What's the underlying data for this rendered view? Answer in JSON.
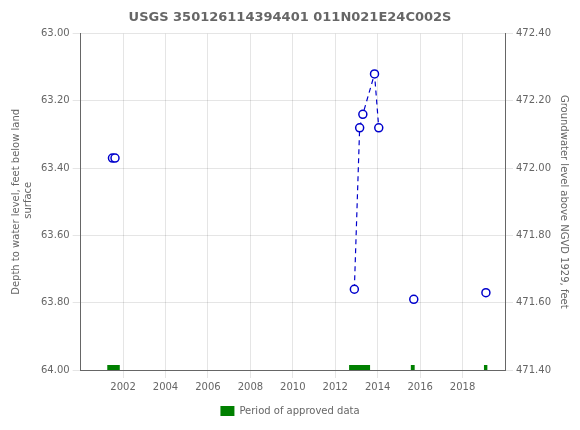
{
  "chart_data": {
    "type": "scatter",
    "title": "USGS 350126114394401 011N021E24C002S",
    "ylabel": "Depth to water level, feet below land\n surface",
    "y2label": "Groundwater level above NGVD 1929, feet",
    "xlim": [
      2000,
      2020
    ],
    "xticks": [
      2002,
      2004,
      2006,
      2008,
      2010,
      2012,
      2014,
      2016,
      2018
    ],
    "ylim": [
      64.0,
      63.0
    ],
    "yticks": [
      {
        "value": 63.0,
        "label": "63.00"
      },
      {
        "value": 63.2,
        "label": "63.20"
      },
      {
        "value": 63.4,
        "label": "63.40"
      },
      {
        "value": 63.6,
        "label": "63.60"
      },
      {
        "value": 63.8,
        "label": "63.80"
      },
      {
        "value": 64.0,
        "label": "64.00"
      }
    ],
    "y2lim": [
      471.4,
      472.4
    ],
    "y2ticks": [
      {
        "value": 472.4,
        "label": "472.40"
      },
      {
        "value": 472.2,
        "label": "472.20"
      },
      {
        "value": 472.0,
        "label": "472.00"
      },
      {
        "value": 471.8,
        "label": "471.80"
      },
      {
        "value": 471.6,
        "label": "471.60"
      },
      {
        "value": 471.4,
        "label": "471.40"
      }
    ],
    "grid": true,
    "legend": "bottom",
    "series": [
      {
        "name": "Period of approved data",
        "type": "band",
        "color": "#008000",
        "x": [
          [
            2001.25,
            2001.85
          ],
          [
            2012.65,
            2013.65
          ],
          [
            2015.55,
            2015.75
          ],
          [
            2019.0,
            2019.18
          ]
        ],
        "values": [
          [
            63.985,
            64.0
          ],
          [
            63.985,
            64.0
          ],
          [
            63.985,
            64.0
          ],
          [
            63.985,
            64.0
          ]
        ]
      },
      {
        "type": "line",
        "line_style": "dashed",
        "color": "#0000cc",
        "x": [
          2012.9,
          2013.15,
          2013.3,
          2013.85,
          2014.05
        ],
        "values": [
          63.76,
          63.28,
          63.24,
          63.12,
          63.28
        ]
      },
      {
        "type": "scatter",
        "marker": "open_circle",
        "color": "#0000cc",
        "x": [
          2001.5,
          2001.62,
          2012.9,
          2013.15,
          2013.3,
          2013.85,
          2014.05,
          2015.7,
          2019.1
        ],
        "values": [
          63.37,
          63.37,
          63.76,
          63.28,
          63.24,
          63.12,
          63.28,
          63.79,
          63.77
        ]
      }
    ]
  }
}
